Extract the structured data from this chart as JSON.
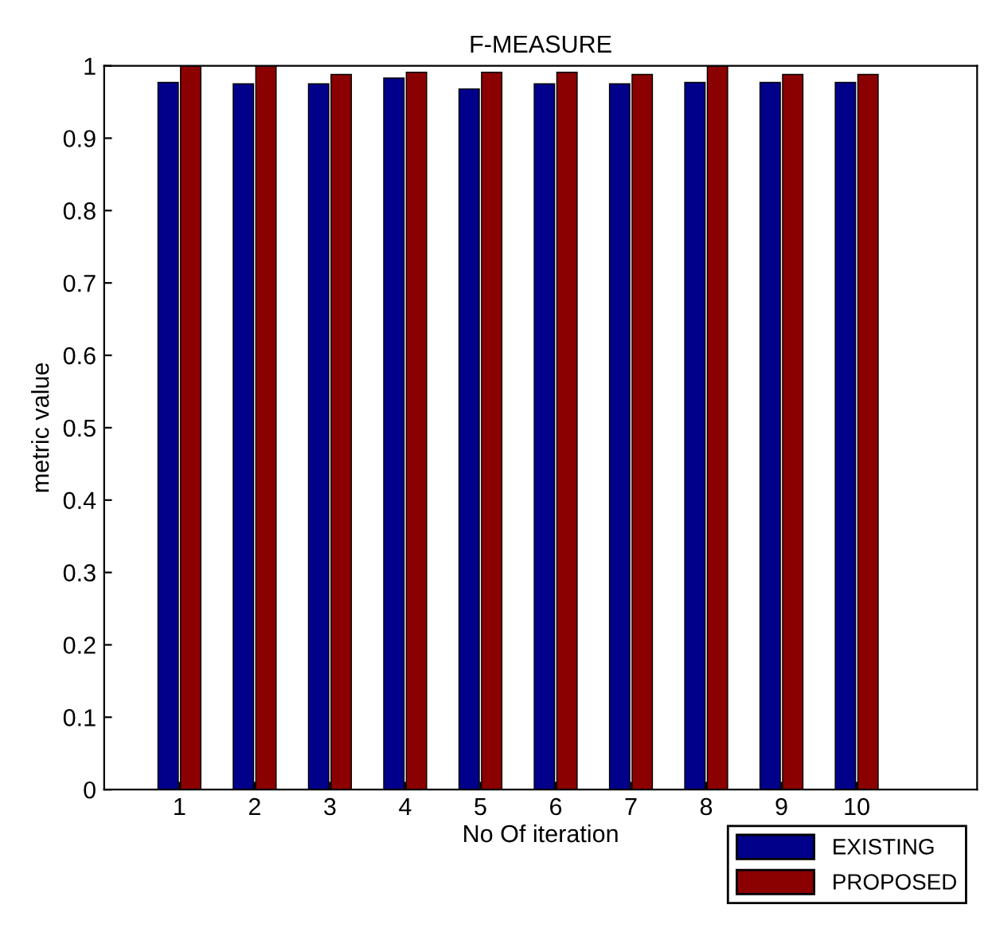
{
  "chart_data": {
    "type": "bar",
    "title": "F-MEASURE",
    "xlabel": "No Of iteration",
    "ylabel": "metric value",
    "x": [
      1,
      2,
      3,
      4,
      5,
      6,
      7,
      8,
      9,
      10
    ],
    "series": [
      {
        "name": "EXISTING",
        "color": "#00008b",
        "values": [
          0.977,
          0.975,
          0.975,
          0.983,
          0.968,
          0.975,
          0.975,
          0.977,
          0.977,
          0.977
        ]
      },
      {
        "name": "PROPOSED",
        "color": "#8b0000",
        "values": [
          1.0,
          1.0,
          0.988,
          0.991,
          0.991,
          0.991,
          0.988,
          1.0,
          0.988,
          0.988
        ]
      }
    ],
    "xlim": [
      0,
      11.6
    ],
    "xticks": [
      1,
      2,
      3,
      4,
      5,
      6,
      7,
      8,
      9,
      10
    ],
    "ylim": [
      0,
      1
    ],
    "yticks": [
      0,
      0.1,
      0.2,
      0.3,
      0.4,
      0.5,
      0.6,
      0.7,
      0.8,
      0.9,
      1
    ],
    "legend": "bottom right",
    "grid": false
  }
}
